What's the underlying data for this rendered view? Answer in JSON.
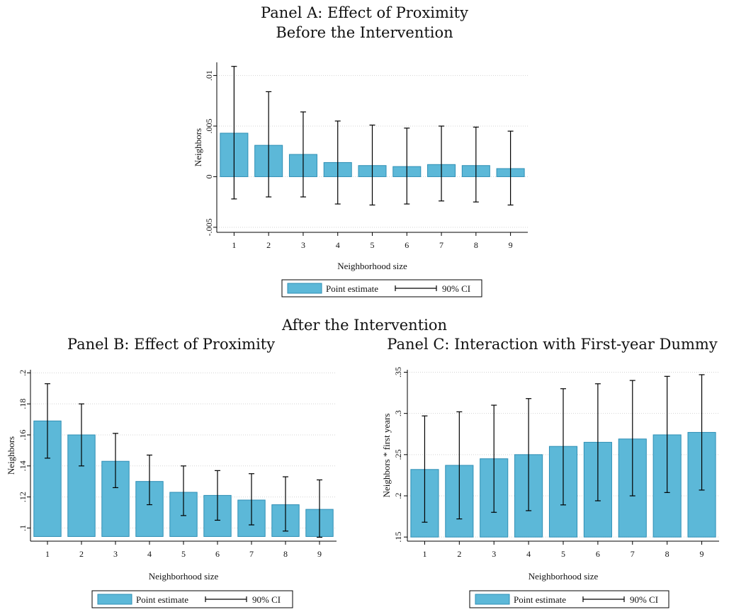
{
  "titles": {
    "top_line1": "Panel A: Effect of Proximity",
    "top_line2": "Before the Intervention",
    "middle": "After the Intervention",
    "panel_b": "Panel B: Effect of Proximity",
    "panel_c": "Panel C: Interaction with First-year Dummy"
  },
  "colors": {
    "bar_fill": "#5cb8d8",
    "bar_stroke": "#2f8fb5",
    "grid": "#d4d4d4",
    "axis": "#000000"
  },
  "chart_data": [
    {
      "type": "bar",
      "categories": [
        "1",
        "2",
        "3",
        "4",
        "5",
        "6",
        "7",
        "8",
        "9"
      ],
      "values": [
        0.0043,
        0.0031,
        0.0022,
        0.0014,
        0.0011,
        0.001,
        0.0012,
        0.0011,
        0.0008
      ],
      "ci_low": [
        -0.0022,
        -0.002,
        -0.002,
        -0.0027,
        -0.0028,
        -0.0027,
        -0.0024,
        -0.0025,
        -0.0028
      ],
      "ci_high": [
        0.0109,
        0.0084,
        0.0064,
        0.0055,
        0.0051,
        0.0048,
        0.005,
        0.0049,
        0.0045
      ],
      "bar_base": 0,
      "xlabel": "Neighborhood size",
      "ylabel": "Neighbors",
      "ylim": [
        -0.0055,
        0.0113
      ],
      "yticks": [
        -0.005,
        0,
        0.005,
        0.01
      ],
      "ytick_labels": [
        "-.005",
        "0",
        ".005",
        ".01"
      ],
      "grid": true,
      "legend": {
        "placement": "bottom-center",
        "point": "Point estimate",
        "ci": "90% CI"
      }
    },
    {
      "type": "bar",
      "categories": [
        "1",
        "2",
        "3",
        "4",
        "5",
        "6",
        "7",
        "8",
        "9"
      ],
      "values": [
        0.169,
        0.16,
        0.143,
        0.13,
        0.123,
        0.121,
        0.118,
        0.115,
        0.112
      ],
      "ci_low": [
        0.145,
        0.14,
        0.126,
        0.115,
        0.108,
        0.105,
        0.102,
        0.098,
        0.094
      ],
      "ci_high": [
        0.193,
        0.18,
        0.161,
        0.147,
        0.14,
        0.137,
        0.135,
        0.133,
        0.131
      ],
      "bar_base": 0.0945,
      "xlabel": "Neighborhood size",
      "ylabel": "Neighbors",
      "ylim": [
        0.0915,
        0.202
      ],
      "yticks": [
        0.1,
        0.12,
        0.14,
        0.16,
        0.18,
        0.2
      ],
      "ytick_labels": [
        ".1",
        ".12",
        ".14",
        ".16",
        ".18",
        ".2"
      ],
      "grid": true,
      "legend": {
        "placement": "bottom-center",
        "point": "Point estimate",
        "ci": "90% CI"
      }
    },
    {
      "type": "bar",
      "categories": [
        "1",
        "2",
        "3",
        "4",
        "5",
        "6",
        "7",
        "8",
        "9"
      ],
      "values": [
        0.232,
        0.237,
        0.245,
        0.25,
        0.26,
        0.265,
        0.269,
        0.274,
        0.277
      ],
      "ci_low": [
        0.168,
        0.172,
        0.18,
        0.182,
        0.189,
        0.194,
        0.2,
        0.204,
        0.207
      ],
      "ci_high": [
        0.297,
        0.302,
        0.31,
        0.318,
        0.33,
        0.336,
        0.34,
        0.345,
        0.347
      ],
      "bar_base": 0.15,
      "xlabel": "Neighborhood size",
      "ylabel": "Neighbors * first years",
      "ylim": [
        0.145,
        0.353
      ],
      "yticks": [
        0.15,
        0.2,
        0.25,
        0.3,
        0.35
      ],
      "ytick_labels": [
        ".15",
        ".2",
        ".25",
        ".3",
        ".35"
      ],
      "grid": true,
      "legend": {
        "placement": "bottom-center",
        "point": "Point estimate",
        "ci": "90% CI"
      }
    }
  ]
}
